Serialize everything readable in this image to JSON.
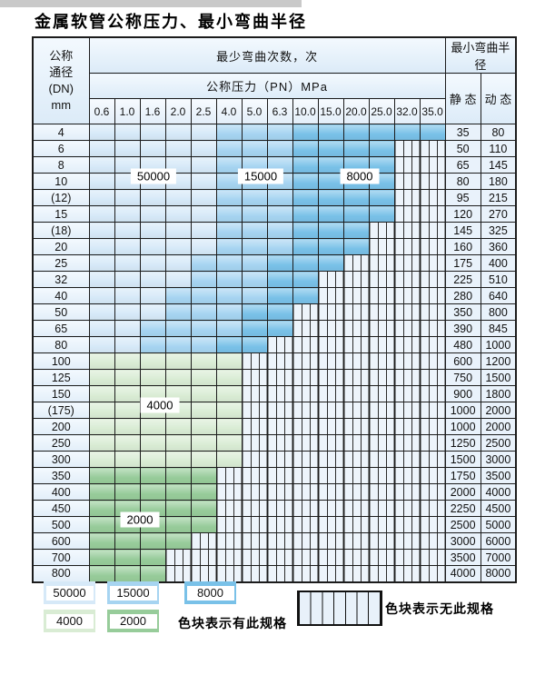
{
  "title": "金属软管公称压力、最小弯曲半径",
  "cell_colors": {
    "50000": "#d6e9f8",
    "15000": "#a6d4f1",
    "8000": "#79c1e8",
    "4000": "#d9ecd4",
    "2000": "#97cc9a"
  },
  "table": {
    "dn_header": [
      "公称",
      "通径",
      "(DN)",
      "mm"
    ],
    "bend_count_header": "最少弯曲次数，次",
    "pressure_header": "公称压力（PN）MPa",
    "bend_radius_header": "最小弯曲半径",
    "static_header": "静 态",
    "dynamic_header": "动 态",
    "pressure_columns": [
      "0.6",
      "1.0",
      "1.6",
      "2.0",
      "2.5",
      "4.0",
      "5.0",
      "6.3",
      "10.0",
      "15.0",
      "20.0",
      "25.0",
      "32.0",
      "35.0"
    ],
    "rows": [
      {
        "dn": "4",
        "cells": [
          "50000",
          "50000",
          "50000",
          "50000",
          "50000",
          "15000",
          "15000",
          "15000",
          "8000",
          "8000",
          "8000",
          "8000",
          "8000",
          "8000"
        ],
        "static": "35",
        "dynamic": "80"
      },
      {
        "dn": "6",
        "cells": [
          "50000",
          "50000",
          "50000",
          "50000",
          "50000",
          "15000",
          "15000",
          "15000",
          "8000",
          "8000",
          "8000",
          "8000",
          "none",
          "none"
        ],
        "static": "50",
        "dynamic": "110"
      },
      {
        "dn": "8",
        "cells": [
          "50000",
          "50000",
          "50000",
          "50000",
          "50000",
          "15000",
          "15000",
          "15000",
          "8000",
          "8000",
          "8000",
          "8000",
          "none",
          "none"
        ],
        "static": "65",
        "dynamic": "145"
      },
      {
        "dn": "10",
        "cells": [
          "50000",
          "50000",
          "50000",
          "50000",
          "50000",
          "15000",
          "15000",
          "15000",
          "8000",
          "8000",
          "8000",
          "8000",
          "none",
          "none"
        ],
        "static": "80",
        "dynamic": "180"
      },
      {
        "dn": "(12)",
        "cells": [
          "50000",
          "50000",
          "50000",
          "50000",
          "50000",
          "15000",
          "15000",
          "15000",
          "8000",
          "8000",
          "8000",
          "8000",
          "none",
          "none"
        ],
        "static": "95",
        "dynamic": "215"
      },
      {
        "dn": "15",
        "cells": [
          "50000",
          "50000",
          "50000",
          "50000",
          "50000",
          "15000",
          "15000",
          "15000",
          "8000",
          "8000",
          "8000",
          "8000",
          "none",
          "none"
        ],
        "static": "120",
        "dynamic": "270"
      },
      {
        "dn": "(18)",
        "cells": [
          "50000",
          "50000",
          "50000",
          "50000",
          "50000",
          "15000",
          "15000",
          "15000",
          "8000",
          "8000",
          "8000",
          "none",
          "none",
          "none"
        ],
        "static": "145",
        "dynamic": "325"
      },
      {
        "dn": "20",
        "cells": [
          "50000",
          "50000",
          "50000",
          "50000",
          "50000",
          "15000",
          "15000",
          "15000",
          "8000",
          "8000",
          "8000",
          "none",
          "none",
          "none"
        ],
        "static": "160",
        "dynamic": "360"
      },
      {
        "dn": "25",
        "cells": [
          "50000",
          "50000",
          "50000",
          "50000",
          "15000",
          "15000",
          "15000",
          "8000",
          "8000",
          "8000",
          "none",
          "none",
          "none",
          "none"
        ],
        "static": "175",
        "dynamic": "400"
      },
      {
        "dn": "32",
        "cells": [
          "50000",
          "50000",
          "50000",
          "50000",
          "15000",
          "15000",
          "15000",
          "8000",
          "8000",
          "none",
          "none",
          "none",
          "none",
          "none"
        ],
        "static": "225",
        "dynamic": "510"
      },
      {
        "dn": "40",
        "cells": [
          "50000",
          "50000",
          "50000",
          "15000",
          "15000",
          "15000",
          "15000",
          "8000",
          "8000",
          "none",
          "none",
          "none",
          "none",
          "none"
        ],
        "static": "280",
        "dynamic": "640"
      },
      {
        "dn": "50",
        "cells": [
          "50000",
          "50000",
          "50000",
          "15000",
          "15000",
          "15000",
          "8000",
          "8000",
          "none",
          "none",
          "none",
          "none",
          "none",
          "none"
        ],
        "static": "350",
        "dynamic": "800"
      },
      {
        "dn": "65",
        "cells": [
          "50000",
          "50000",
          "15000",
          "15000",
          "15000",
          "15000",
          "8000",
          "8000",
          "none",
          "none",
          "none",
          "none",
          "none",
          "none"
        ],
        "static": "390",
        "dynamic": "845"
      },
      {
        "dn": "80",
        "cells": [
          "50000",
          "50000",
          "15000",
          "15000",
          "15000",
          "8000",
          "8000",
          "none",
          "none",
          "none",
          "none",
          "none",
          "none",
          "none"
        ],
        "static": "480",
        "dynamic": "1000"
      },
      {
        "dn": "100",
        "cells": [
          "4000",
          "4000",
          "4000",
          "4000",
          "4000",
          "4000",
          "none",
          "none",
          "none",
          "none",
          "none",
          "none",
          "none",
          "none"
        ],
        "static": "600",
        "dynamic": "1200"
      },
      {
        "dn": "125",
        "cells": [
          "4000",
          "4000",
          "4000",
          "4000",
          "4000",
          "4000",
          "none",
          "none",
          "none",
          "none",
          "none",
          "none",
          "none",
          "none"
        ],
        "static": "750",
        "dynamic": "1500"
      },
      {
        "dn": "150",
        "cells": [
          "4000",
          "4000",
          "4000",
          "4000",
          "4000",
          "4000",
          "none",
          "none",
          "none",
          "none",
          "none",
          "none",
          "none",
          "none"
        ],
        "static": "900",
        "dynamic": "1800"
      },
      {
        "dn": "(175)",
        "cells": [
          "4000",
          "4000",
          "4000",
          "4000",
          "4000",
          "4000",
          "none",
          "none",
          "none",
          "none",
          "none",
          "none",
          "none",
          "none"
        ],
        "static": "1000",
        "dynamic": "2000"
      },
      {
        "dn": "200",
        "cells": [
          "4000",
          "4000",
          "4000",
          "4000",
          "4000",
          "4000",
          "none",
          "none",
          "none",
          "none",
          "none",
          "none",
          "none",
          "none"
        ],
        "static": "1000",
        "dynamic": "2000"
      },
      {
        "dn": "250",
        "cells": [
          "4000",
          "4000",
          "4000",
          "4000",
          "4000",
          "4000",
          "none",
          "none",
          "none",
          "none",
          "none",
          "none",
          "none",
          "none"
        ],
        "static": "1250",
        "dynamic": "2500"
      },
      {
        "dn": "300",
        "cells": [
          "4000",
          "4000",
          "4000",
          "4000",
          "4000",
          "4000",
          "none",
          "none",
          "none",
          "none",
          "none",
          "none",
          "none",
          "none"
        ],
        "static": "1500",
        "dynamic": "3000"
      },
      {
        "dn": "350",
        "cells": [
          "2000",
          "2000",
          "2000",
          "2000",
          "2000",
          "none",
          "none",
          "none",
          "none",
          "none",
          "none",
          "none",
          "none",
          "none"
        ],
        "static": "1750",
        "dynamic": "3500"
      },
      {
        "dn": "400",
        "cells": [
          "2000",
          "2000",
          "2000",
          "2000",
          "2000",
          "none",
          "none",
          "none",
          "none",
          "none",
          "none",
          "none",
          "none",
          "none"
        ],
        "static": "2000",
        "dynamic": "4000"
      },
      {
        "dn": "450",
        "cells": [
          "2000",
          "2000",
          "2000",
          "2000",
          "2000",
          "none",
          "none",
          "none",
          "none",
          "none",
          "none",
          "none",
          "none",
          "none"
        ],
        "static": "2250",
        "dynamic": "4500"
      },
      {
        "dn": "500",
        "cells": [
          "2000",
          "2000",
          "2000",
          "2000",
          "2000",
          "none",
          "none",
          "none",
          "none",
          "none",
          "none",
          "none",
          "none",
          "none"
        ],
        "static": "2500",
        "dynamic": "5000"
      },
      {
        "dn": "600",
        "cells": [
          "2000",
          "2000",
          "2000",
          "2000",
          "none",
          "none",
          "none",
          "none",
          "none",
          "none",
          "none",
          "none",
          "none",
          "none"
        ],
        "static": "3000",
        "dynamic": "6000"
      },
      {
        "dn": "700",
        "cells": [
          "2000",
          "2000",
          "2000",
          "none",
          "none",
          "none",
          "none",
          "none",
          "none",
          "none",
          "none",
          "none",
          "none",
          "none"
        ],
        "static": "3500",
        "dynamic": "7000"
      },
      {
        "dn": "800",
        "cells": [
          "2000",
          "2000",
          "2000",
          "none",
          "none",
          "none",
          "none",
          "none",
          "none",
          "none",
          "none",
          "none",
          "none",
          "none"
        ],
        "static": "4000",
        "dynamic": "8000"
      }
    ]
  },
  "region_labels": [
    {
      "id": "label-50000",
      "text": "50000"
    },
    {
      "id": "label-15000",
      "text": "15000"
    },
    {
      "id": "label-8000",
      "text": "8000"
    },
    {
      "id": "label-4000",
      "text": "4000"
    },
    {
      "id": "label-2000",
      "text": "2000"
    }
  ],
  "legend": {
    "spec_items": [
      {
        "id": "legend-50000",
        "label": "50000",
        "color_key": "50000"
      },
      {
        "id": "legend-15000",
        "label": "15000",
        "color_key": "15000"
      },
      {
        "id": "legend-8000",
        "label": "8000",
        "color_key": "8000"
      },
      {
        "id": "legend-4000",
        "label": "4000",
        "color_key": "4000"
      },
      {
        "id": "legend-2000",
        "label": "2000",
        "color_key": "2000"
      }
    ],
    "has_spec_text": "色块表示有此规格",
    "no_spec_text": "色块表示无此规格"
  }
}
